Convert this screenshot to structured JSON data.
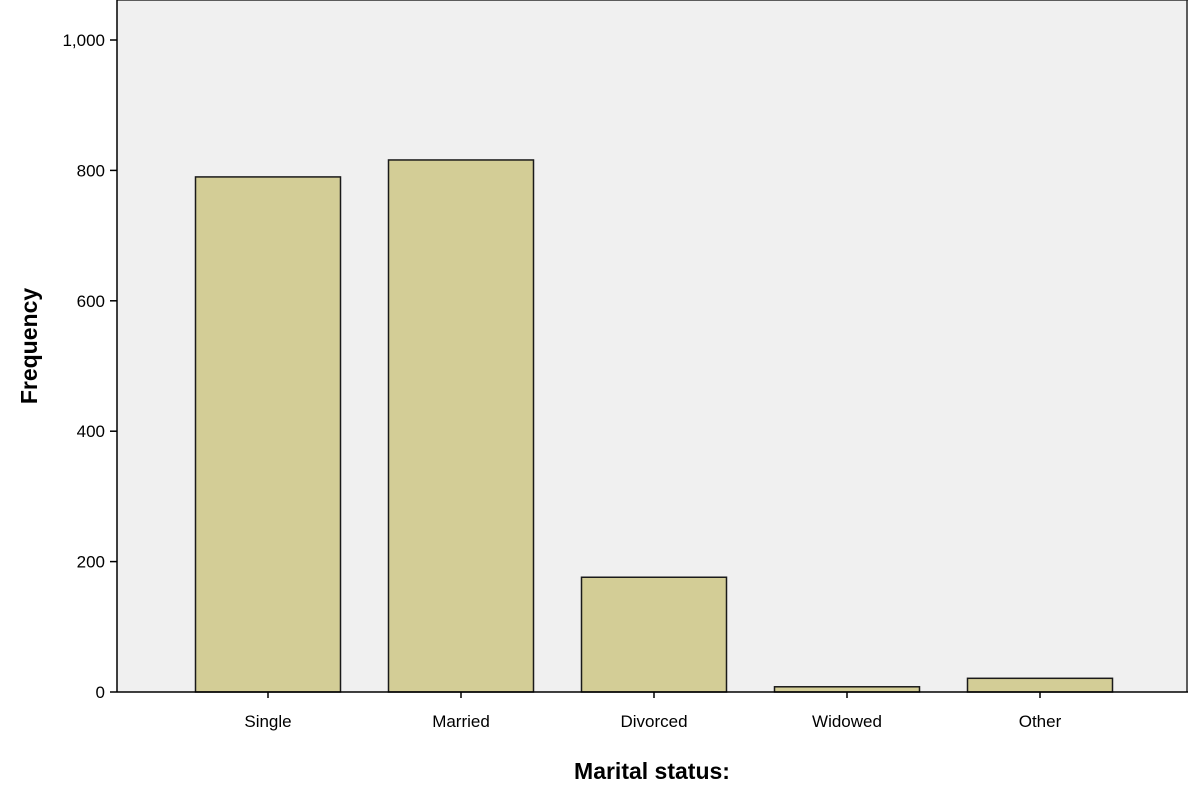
{
  "chart_data": {
    "type": "bar",
    "title": "",
    "xlabel": "Marital status:",
    "ylabel": "Frequency",
    "categories": [
      "Single",
      "Married",
      "Divorced",
      "Widowed",
      "Other"
    ],
    "values": [
      790,
      816,
      176,
      8,
      21
    ],
    "ylim": [
      0,
      1000
    ],
    "yticks": [
      0,
      200,
      400,
      600,
      800,
      1000
    ],
    "ytick_labels": [
      "0",
      "200",
      "400",
      "600",
      "800",
      "1,000"
    ],
    "grid": false,
    "legend": "none",
    "colors": {
      "bar_fill": "#d3cd96",
      "bar_stroke": "#1a1a1a",
      "plot_background": "#f0f0f0"
    }
  }
}
